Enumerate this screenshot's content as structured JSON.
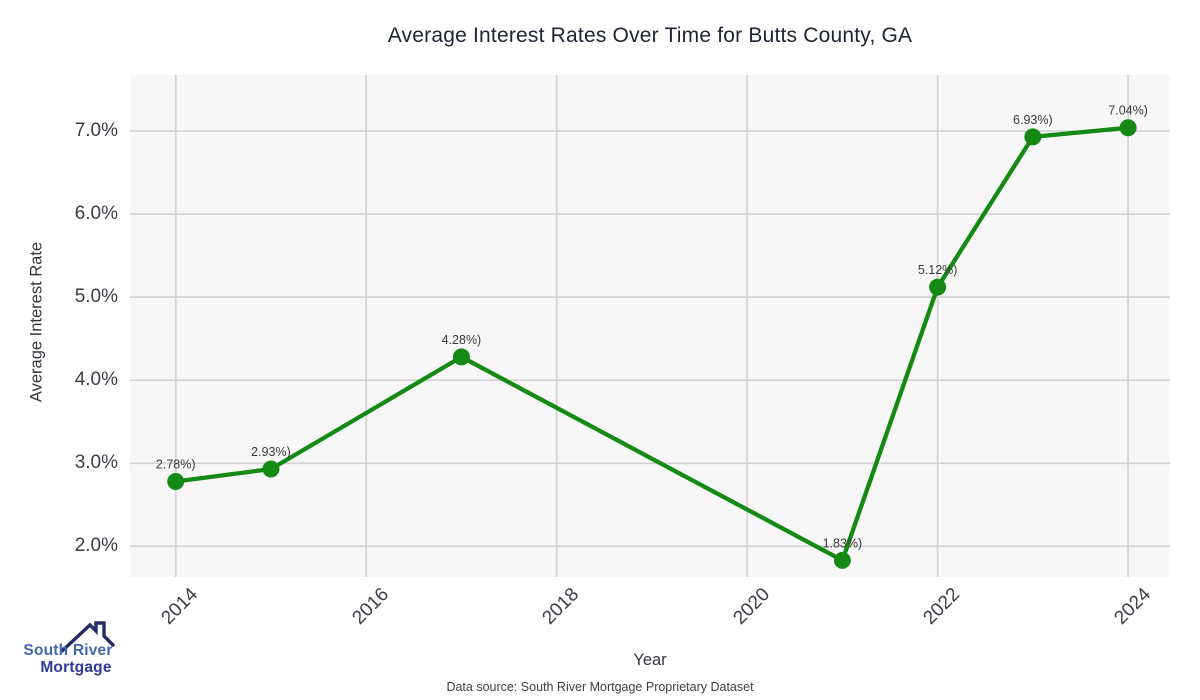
{
  "chart_data": {
    "type": "line",
    "title": "Average Interest Rates Over Time for Butts County, GA",
    "xlabel": "Year",
    "ylabel": "Average Interest Rate",
    "x": [
      2014,
      2015,
      2017,
      2021,
      2022,
      2023,
      2024
    ],
    "y": [
      2.78,
      2.93,
      4.28,
      1.83,
      5.12,
      6.93,
      7.04
    ],
    "point_labels": [
      "2.78%)",
      "2.93%)",
      "4.28%)",
      "1.83%)",
      "5.12%)",
      "6.93%)",
      "7.04%)"
    ],
    "x_ticks": [
      2014,
      2016,
      2018,
      2020,
      2022,
      2024
    ],
    "y_ticks": [
      {
        "value": 7.0,
        "label": "7.0%"
      },
      {
        "value": 6.0,
        "label": "6.0%"
      },
      {
        "value": 5.0,
        "label": "5.0%"
      },
      {
        "value": 4.0,
        "label": "4.0%"
      },
      {
        "value": 3.0,
        "label": "3.0%"
      },
      {
        "value": 2.0,
        "label": "2.0%"
      }
    ],
    "xlim": [
      2013.52,
      2024.44
    ],
    "ylim": [
      1.63,
      7.675
    ],
    "grid": true,
    "legend": "none",
    "line_color": "#148a14",
    "marker_color": "#148a14",
    "grid_color": "#d3d3d3",
    "plot_bg_color": "#f7f7f8"
  },
  "footer": {
    "data_source": "Data source: South River Mortgage Proprietary Dataset"
  },
  "logo": {
    "line1": "South River",
    "line2": "Mortgage",
    "roof_color": "#232d63",
    "text_color_1": "#4466ae",
    "text_color_2": "#2f3a99"
  }
}
